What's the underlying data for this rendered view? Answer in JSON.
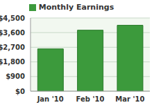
{
  "chart_data": {
    "type": "bar",
    "categories": [
      "Jan '10",
      "Feb '10",
      "Mar '10"
    ],
    "series": [
      {
        "name": "Monthly Earnings",
        "color": "#3c9a3c",
        "values": [
          2600,
          3750,
          4050
        ]
      }
    ],
    "ylim": [
      0,
      4500
    ],
    "yticks": [
      {
        "value": 0,
        "label": "$0"
      },
      {
        "value": 900,
        "label": "$900"
      },
      {
        "value": 1800,
        "label": "$1,800"
      },
      {
        "value": 2700,
        "label": "$2,700"
      },
      {
        "value": 3600,
        "label": "$3,600"
      },
      {
        "value": 4500,
        "label": "$4,500"
      }
    ],
    "grid": true,
    "legend": "top"
  }
}
